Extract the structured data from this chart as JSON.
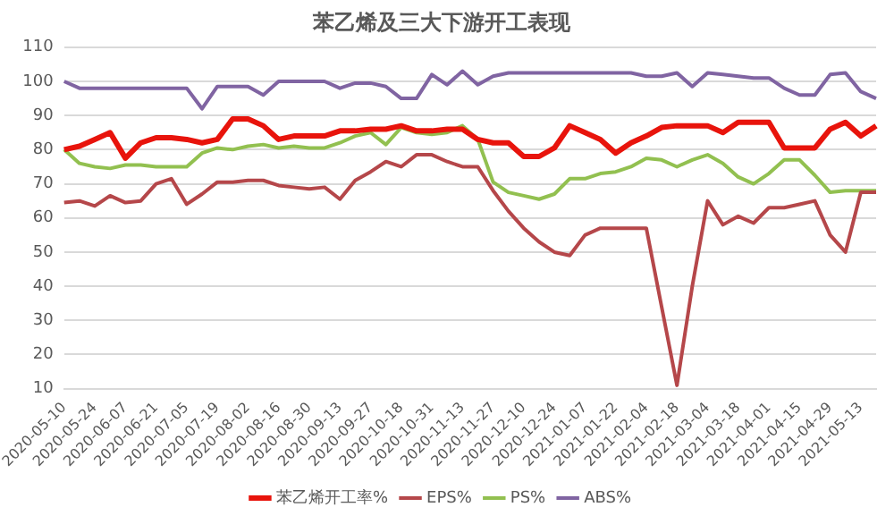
{
  "chart_data": {
    "type": "line",
    "title": "苯乙烯及三大下游开工表现",
    "categories": [
      "2020-05-10",
      null,
      "2020-05-24",
      null,
      "2020-06-07",
      null,
      "2020-06-21",
      null,
      "2020-07-05",
      null,
      "2020-07-19",
      null,
      "2020-08-02",
      null,
      "2020-08-16",
      null,
      "2020-08-30",
      null,
      "2020-09-13",
      null,
      "2020-09-27",
      null,
      "2020-10-18",
      null,
      "2020-10-31",
      null,
      "2020-11-13",
      null,
      "2020-11-27",
      null,
      "2020-12-10",
      null,
      "2020-12-24",
      null,
      "2021-01-07",
      null,
      "2021-01-22",
      null,
      "2021-02-04",
      null,
      "2021-02-18",
      null,
      "2021-03-04",
      null,
      "2021-03-18",
      null,
      "2021-04-01",
      null,
      "2021-04-15",
      null,
      "2021-04-29",
      null,
      "2021-05-13",
      null
    ],
    "series": [
      {
        "name": "苯乙烯开工率%",
        "color": "#e8140c",
        "values": [
          80,
          81,
          83,
          85,
          77.5,
          82,
          83.5,
          83.5,
          83,
          82,
          83,
          89,
          89,
          87,
          83,
          84,
          84,
          84,
          85.5,
          85.5,
          86,
          86,
          87,
          85.5,
          85.5,
          86,
          86,
          83,
          82,
          82,
          78,
          78,
          80.5,
          87,
          85,
          83,
          79,
          82,
          84,
          86.5,
          87,
          87,
          87,
          85,
          88,
          88,
          88,
          80.5,
          80.5,
          80.5,
          86,
          88,
          84,
          87
        ]
      },
      {
        "name": "EPS%",
        "color": "#b5474a",
        "values": [
          64.5,
          65,
          63.5,
          66.5,
          64.5,
          65,
          70,
          71.5,
          64,
          67,
          70.5,
          70.5,
          71,
          71,
          69.5,
          69,
          68.5,
          69,
          65.5,
          71,
          73.5,
          76.5,
          75,
          78.5,
          78.5,
          76.5,
          75,
          75,
          68,
          62,
          57,
          53,
          50,
          49,
          55,
          57,
          57,
          57,
          57,
          34,
          11,
          40,
          65,
          58,
          60.5,
          58.5,
          63,
          63,
          64,
          65,
          55,
          50,
          67.5,
          67.5
        ]
      },
      {
        "name": "PS%",
        "color": "#92c050",
        "values": [
          80,
          76,
          75,
          74.5,
          75.5,
          75.5,
          75,
          75,
          75,
          79,
          80.5,
          80,
          81,
          81.5,
          80.5,
          81,
          80.5,
          80.5,
          82,
          84,
          85,
          81.5,
          86.5,
          85,
          84.5,
          85,
          87,
          83,
          70.5,
          67.5,
          66.5,
          65.5,
          67,
          71.5,
          71.5,
          73,
          73.5,
          75,
          77.5,
          77,
          75,
          77,
          78.5,
          76,
          72,
          70,
          73,
          77,
          77,
          72.5,
          67.5,
          68,
          68,
          68
        ]
      },
      {
        "name": "ABS%",
        "color": "#8064a2",
        "values": [
          100,
          98,
          98,
          98,
          98,
          98,
          98,
          98,
          98,
          92,
          98.5,
          98.5,
          98.5,
          96,
          100,
          100,
          100,
          100,
          98,
          99.5,
          99.5,
          98.5,
          95,
          95,
          102,
          99,
          103,
          99,
          101.5,
          102.5,
          102.5,
          102.5,
          102.5,
          102.5,
          102.5,
          102.5,
          102.5,
          102.5,
          101.5,
          101.5,
          102.5,
          98.5,
          102.5,
          102,
          101.5,
          101,
          101,
          98,
          96,
          96,
          102,
          102.5,
          97,
          95
        ]
      }
    ],
    "ylim": [
      10,
      110
    ],
    "yticks": [
      10,
      20,
      30,
      40,
      50,
      60,
      70,
      80,
      90,
      100,
      110
    ],
    "grid": "y",
    "legend": "bottom",
    "marker": "none",
    "line_style": "solid"
  }
}
